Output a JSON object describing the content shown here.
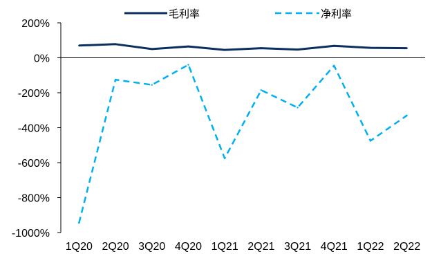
{
  "chart_data": {
    "type": "line",
    "title": "",
    "xlabel": "",
    "ylabel": "",
    "categories": [
      "1Q20",
      "2Q20",
      "3Q20",
      "4Q20",
      "1Q21",
      "2Q21",
      "3Q21",
      "4Q21",
      "1Q22",
      "2Q22"
    ],
    "ylim": [
      -1000,
      200
    ],
    "yticks": [
      200,
      0,
      -200,
      -400,
      -600,
      -800,
      -1000
    ],
    "ytick_labels": [
      "200%",
      "0%",
      "-200%",
      "-400%",
      "-600%",
      "-800%",
      "-1000%"
    ],
    "grid": false,
    "legend_position": "top",
    "series": [
      {
        "name": "毛利率",
        "style": "solid",
        "color": "#0b2f5e",
        "values": [
          70,
          78,
          50,
          65,
          45,
          55,
          47,
          68,
          57,
          55
        ]
      },
      {
        "name": "净利率",
        "style": "dashed",
        "color": "#00b0f0",
        "values": [
          -945,
          -125,
          -155,
          -40,
          -575,
          -185,
          -285,
          -45,
          -475,
          -330
        ]
      }
    ]
  }
}
